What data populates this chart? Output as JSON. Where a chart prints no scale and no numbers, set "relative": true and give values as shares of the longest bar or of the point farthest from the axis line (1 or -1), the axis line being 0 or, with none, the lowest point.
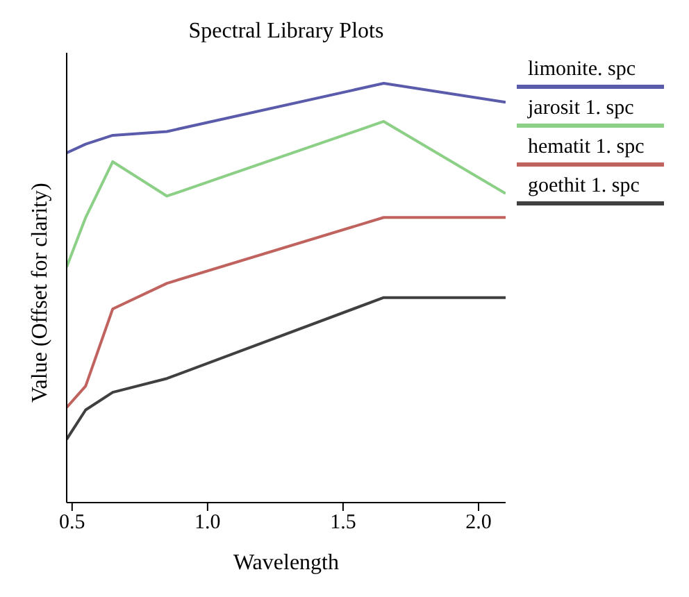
{
  "chart_data": {
    "type": "line",
    "title": "Spectral Library Plots",
    "xlabel": "Wavelength",
    "ylabel": "Value (Offset for clarity)",
    "relative": true,
    "tick_labels": "x",
    "legend": "right",
    "grid": false,
    "marker": "none",
    "line_style": "solid",
    "xlim": [
      0.48,
      2.1
    ],
    "xticks": [
      0.5,
      {
        "value": 1,
        "label": "1.0"
      },
      1.5,
      {
        "value": 2,
        "label": "2.0"
      }
    ],
    "x": [
      0.48,
      0.55,
      0.65,
      0.85,
      1.65,
      2.1
    ],
    "series": [
      {
        "name": "limonite. spc",
        "color": "#5a5cab",
        "values": [
          0.834,
          0.855,
          0.876,
          0.885,
          1,
          0.955
        ]
      },
      {
        "name": "jarosit 1. spc",
        "color": "#8ccf86",
        "values": [
          0.562,
          0.68,
          0.813,
          0.731,
          0.909,
          0.737
        ]
      },
      {
        "name": "hematit 1. spc",
        "color": "#c0625e",
        "values": [
          0.227,
          0.278,
          0.462,
          0.523,
          0.68,
          0.68
        ]
      },
      {
        "name": "goethit 1. spc",
        "color": "#404040",
        "values": [
          0.151,
          0.221,
          0.263,
          0.296,
          0.489,
          0.489
        ]
      }
    ]
  }
}
